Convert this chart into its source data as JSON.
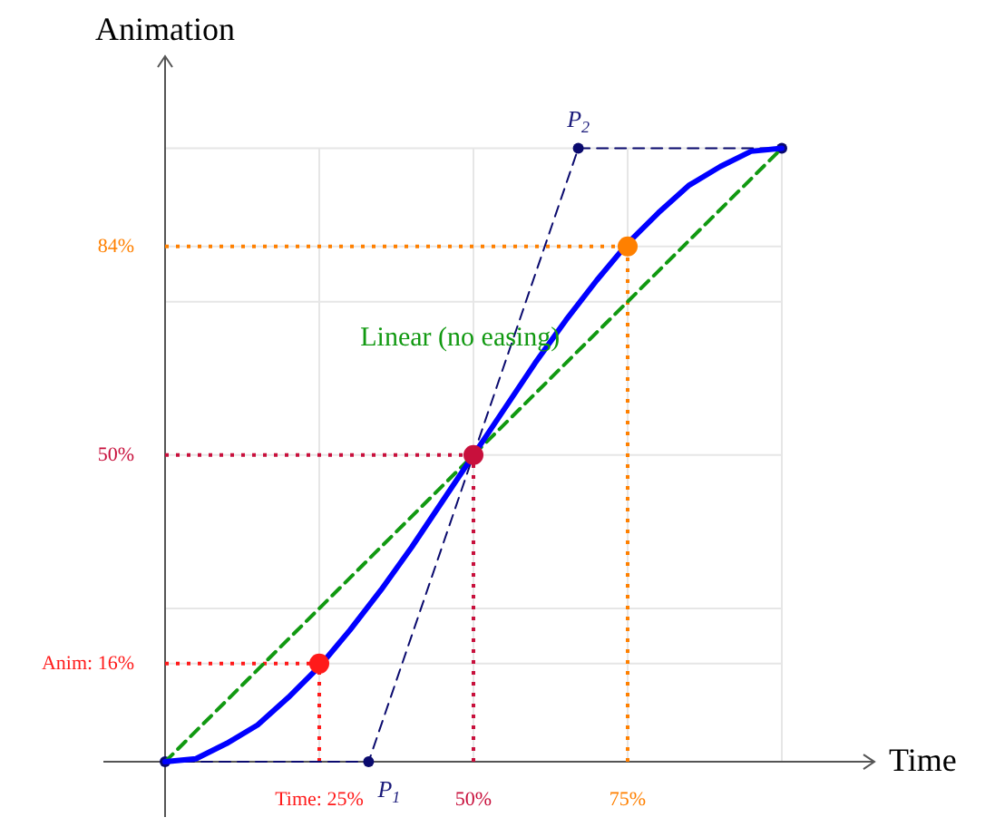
{
  "chart_data": {
    "type": "line",
    "xlabel": "Time",
    "ylabel": "Animation",
    "xlim": [
      -10,
      115
    ],
    "ylim": [
      -9,
      115
    ],
    "xticks": [
      {
        "value": 0,
        "label": null
      },
      {
        "value": 25,
        "label": "Time: 25%"
      },
      {
        "value": 50,
        "label": "50%"
      },
      {
        "value": 75,
        "label": "75%"
      },
      {
        "value": 100,
        "label": null
      }
    ],
    "yticks": [
      {
        "value": 0,
        "label": null
      },
      {
        "value": 16,
        "label": "Anim: 16%"
      },
      {
        "value": 25,
        "label": null
      },
      {
        "value": 50,
        "label": "50%"
      },
      {
        "value": 75,
        "label": null
      },
      {
        "value": 84,
        "label": "84%"
      },
      {
        "value": 100,
        "label": null
      }
    ],
    "grid": true,
    "marker": "none",
    "line_style": "solid",
    "series": [
      {
        "color": "#ff1a1a",
        "line_style": "dotted",
        "x": [
          0,
          25
        ],
        "values": [
          16,
          16
        ]
      },
      {
        "color": "#ff1a1a",
        "line_style": "dotted",
        "x": [
          25,
          25
        ],
        "values": [
          0,
          16
        ]
      },
      {
        "color": "#c8103c",
        "line_style": "dotted",
        "x": [
          0,
          50
        ],
        "values": [
          50,
          50
        ]
      },
      {
        "color": "#c8103c",
        "line_style": "dotted",
        "x": [
          50,
          50
        ],
        "values": [
          0,
          50
        ]
      },
      {
        "color": "#ff8000",
        "line_style": "dotted",
        "x": [
          0,
          75
        ],
        "values": [
          84,
          84
        ]
      },
      {
        "color": "#ff8000",
        "line_style": "dotted",
        "x": [
          75,
          75
        ],
        "values": [
          0,
          84
        ]
      },
      {
        "color": "#0a0a6e",
        "line_style": "dashed",
        "marker": "circle",
        "x": [
          0,
          33,
          67,
          100
        ],
        "values": [
          0,
          0,
          100,
          100
        ]
      },
      {
        "name": "Linear (no easing)",
        "color": "#119911",
        "line_style": "dashed",
        "x": [
          0,
          100
        ],
        "values": [
          0,
          100
        ]
      },
      {
        "color": "#0000ff",
        "x": [
          0,
          5,
          10,
          15,
          20,
          25,
          30,
          35,
          40,
          45,
          50,
          55,
          60,
          65,
          70,
          75,
          80,
          85,
          90,
          95,
          100
        ],
        "values": [
          0,
          0.5,
          3,
          6,
          10.5,
          15.5,
          21.5,
          28,
          35,
          42.5,
          50,
          57.5,
          65,
          72,
          78.5,
          84.5,
          89.5,
          94,
          97,
          99.5,
          100
        ]
      },
      {
        "type": "scatter",
        "marker": "circle",
        "colors": [
          "#ff1a1a",
          "#c8103c",
          "#ff8000"
        ],
        "x": [
          25,
          50,
          75
        ],
        "values": [
          16,
          50,
          84
        ]
      }
    ],
    "annotations": [
      {
        "text": "P$_{1}$",
        "x": 33,
        "y": 0
      },
      {
        "text": "P$_{2}$",
        "x": 67,
        "y": 100
      }
    ]
  }
}
